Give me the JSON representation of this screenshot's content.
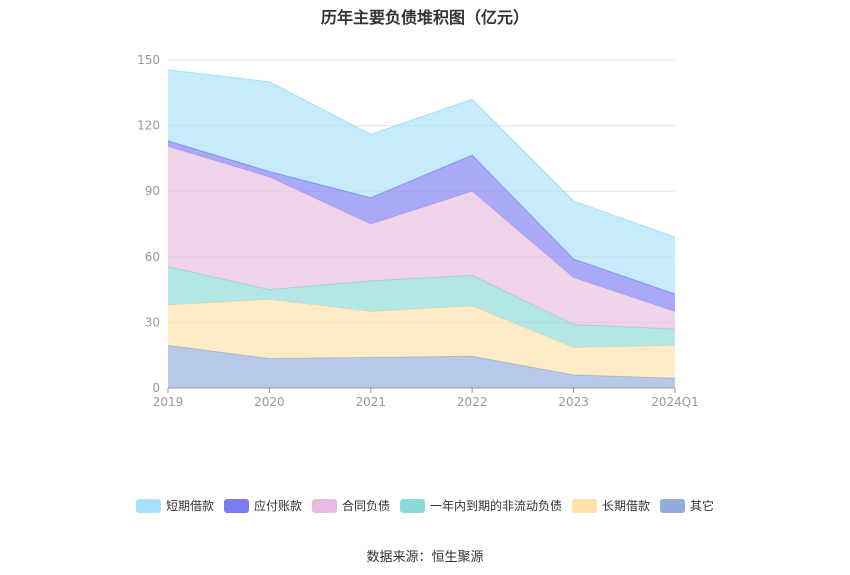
{
  "chart_data": {
    "type": "area",
    "stacked": true,
    "title": "历年主要负债堆积图（亿元）",
    "categories": [
      "2019",
      "2020",
      "2021",
      "2022",
      "2023",
      "2024Q1"
    ],
    "ylim": [
      0,
      150
    ],
    "yticks": [
      0,
      30,
      60,
      90,
      120,
      150
    ],
    "grid": true,
    "legend_position": "bottom",
    "series": [
      {
        "name": "其它",
        "color": "#91acd9",
        "values": [
          19.5,
          13.5,
          14,
          14.5,
          6,
          4.5
        ]
      },
      {
        "name": "长期借款",
        "color": "#ffe0a6",
        "values": [
          18.5,
          27,
          21,
          23,
          12.5,
          15
        ]
      },
      {
        "name": "一年内到期的非流动负债",
        "color": "#8cd9d9",
        "values": [
          17.5,
          4.5,
          14,
          14,
          10.5,
          7.5
        ]
      },
      {
        "name": "合同负债",
        "color": "#e5bce0",
        "values": [
          55,
          51.5,
          26,
          38.5,
          21.5,
          8
        ]
      },
      {
        "name": "应付账款",
        "color": "#7b7bf2",
        "values": [
          2.5,
          2.5,
          12,
          16.5,
          8.5,
          8
        ]
      },
      {
        "name": "短期借款",
        "color": "#a6e0fa",
        "values": [
          32.5,
          41,
          29,
          25.5,
          26.5,
          26
        ]
      }
    ],
    "legend_order": [
      "短期借款",
      "应付账款",
      "合同负债",
      "一年内到期的非流动负债",
      "长期借款",
      "其它"
    ]
  },
  "source_text": "数据来源：恒生聚源"
}
